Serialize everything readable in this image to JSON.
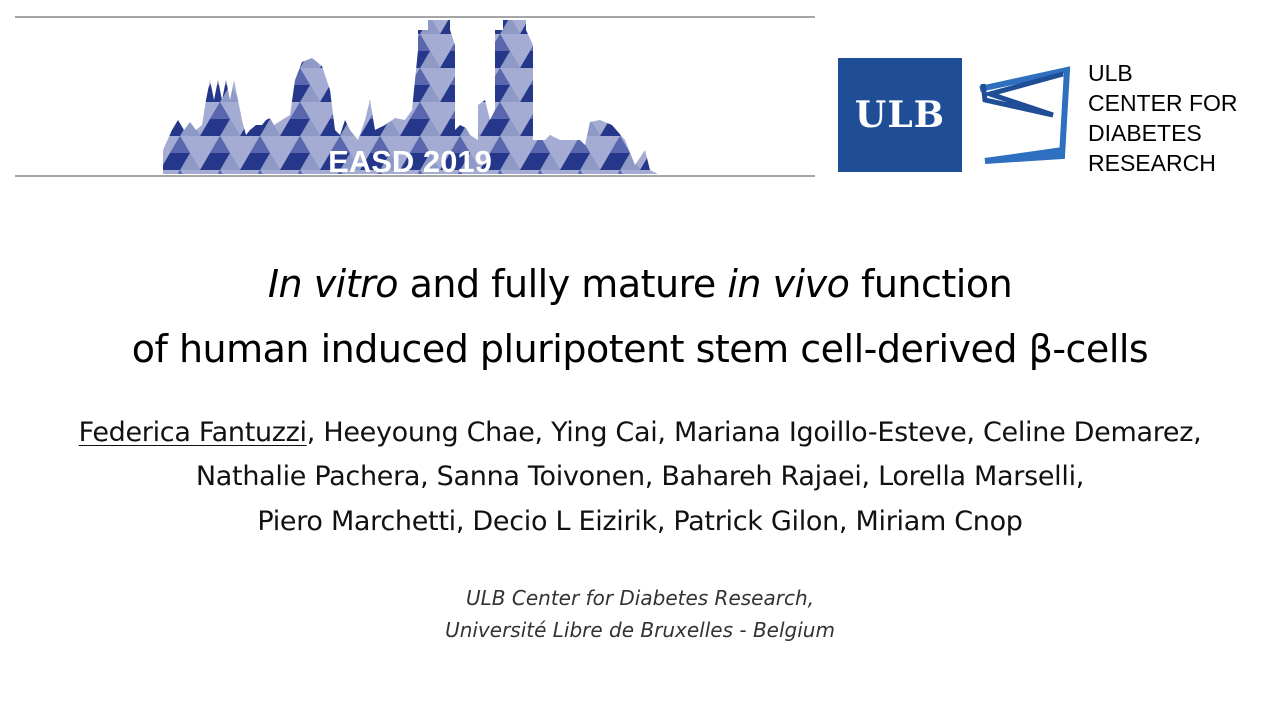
{
  "header": {
    "conference_logo_text": "EASD 2019",
    "ulb_logo_text": "ULB",
    "center_name_lines": [
      "ULB",
      "CENTER FOR",
      "DIABETES",
      "RESEARCH"
    ],
    "colors": {
      "brand_blue": "#1f4e96",
      "skyline_dark": "#24378a",
      "skyline_mid": "#a5acd3",
      "skyline_light": "#d6daee"
    }
  },
  "title": {
    "line1_italic_a": "In vitro",
    "line1_mid": " and fully mature ",
    "line1_italic_b": "in vivo",
    "line1_end": " function",
    "line2": "of human induced pluripotent stem cell-derived β-cells"
  },
  "authors": {
    "presenting": "Federica Fantuzzi",
    "line1_rest": ", Heeyoung Chae, Ying Cai, Mariana Igoillo-Esteve, Celine Demarez,",
    "line2": "Nathalie Pachera, Sanna Toivonen, Bahareh Rajaei, Lorella Marselli,",
    "line3": "Piero Marchetti, Decio L Eizirik, Patrick Gilon, Miriam Cnop"
  },
  "affiliation": {
    "line1": "ULB Center for Diabetes Research,",
    "line2": "Université Libre de Bruxelles - Belgium"
  }
}
